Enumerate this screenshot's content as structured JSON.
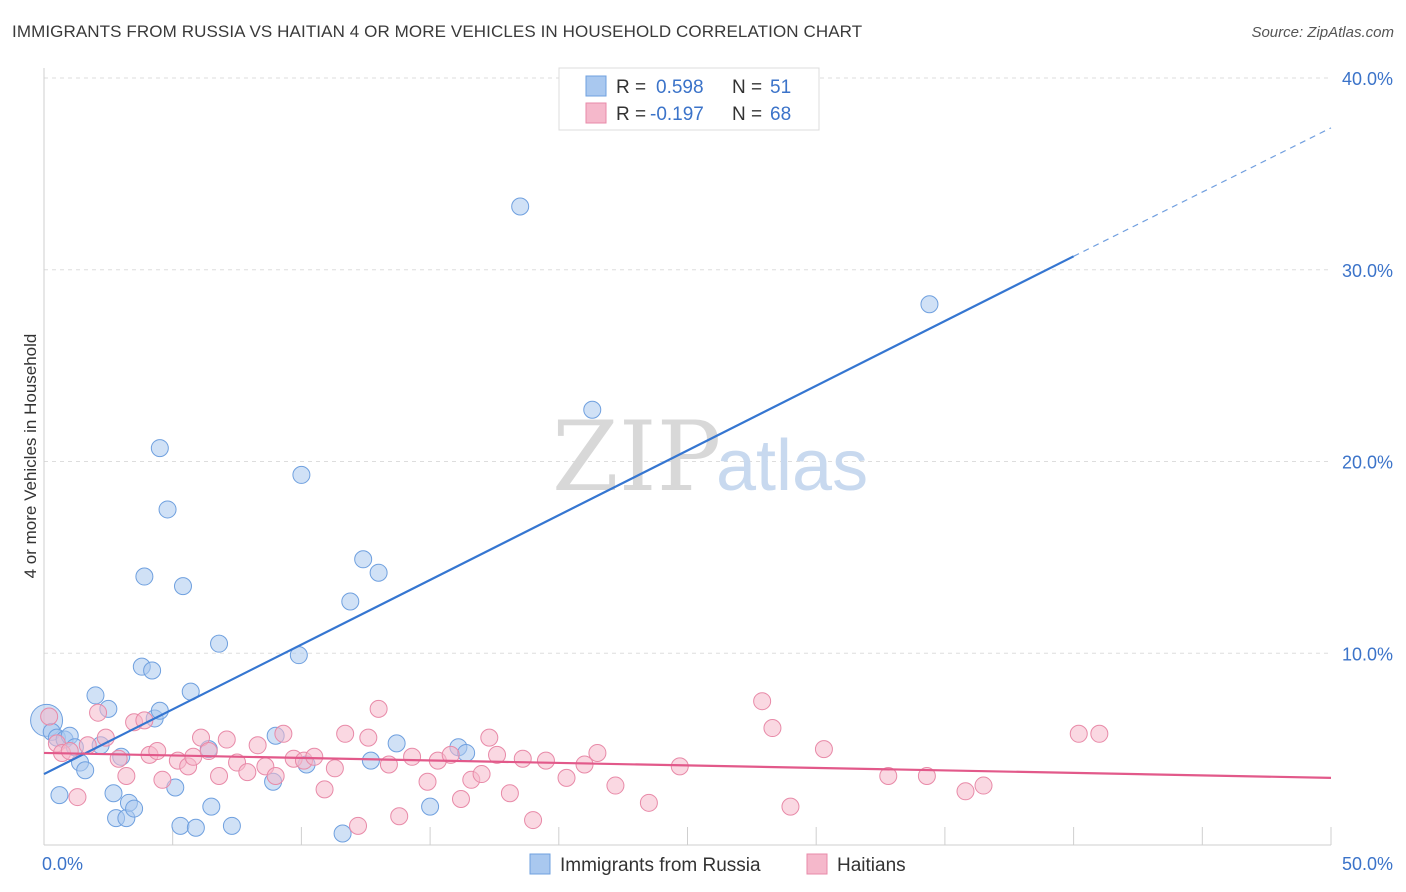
{
  "header": {
    "title": "IMMIGRANTS FROM RUSSIA VS HAITIAN 4 OR MORE VEHICLES IN HOUSEHOLD CORRELATION CHART",
    "source": "Source: ZipAtlas.com"
  },
  "watermark": {
    "zip": "ZIP",
    "atlas": "atlas"
  },
  "stats_legend": [
    {
      "r_label": "R =",
      "r_value": "0.598",
      "n_label": "N =",
      "n_value": "51",
      "color": "#a9c8ef"
    },
    {
      "r_label": "R =",
      "r_value": "-0.197",
      "n_label": "N =",
      "n_value": "68",
      "color": "#f5b8cb"
    }
  ],
  "chart_data": {
    "type": "scatter",
    "title": "IMMIGRANTS FROM RUSSIA VS HAITIAN 4 OR MORE VEHICLES IN HOUSEHOLD CORRELATION CHART",
    "xlabel": "",
    "ylabel": "4 or more Vehicles in Household",
    "xlim": [
      0,
      50
    ],
    "ylim": [
      0,
      40
    ],
    "x_tick_labels": [
      {
        "value": 0,
        "label": "0.0%"
      },
      {
        "value": 50,
        "label": "50.0%"
      }
    ],
    "y_tick_labels": [
      {
        "value": 10,
        "label": "10.0%"
      },
      {
        "value": 20,
        "label": "20.0%"
      },
      {
        "value": 30,
        "label": "30.0%"
      },
      {
        "value": 40,
        "label": "40.0%"
      }
    ],
    "x_gridlines": [
      5,
      10,
      15,
      20,
      25,
      30,
      35,
      40,
      45,
      50
    ],
    "y_gridlines": [
      10,
      20,
      30,
      40
    ],
    "legend": [
      "Immigrants from Russia",
      "Haitians"
    ],
    "series": [
      {
        "name": "Immigrants from Russia",
        "color": "#a9c8ef",
        "stroke": "#6fa0df",
        "line_color": "#3576d1",
        "r": 0.598,
        "n": 51,
        "trend": {
          "x0": 0,
          "y0": 3.7,
          "x1": 40,
          "y1": 30.7,
          "dashed_to_x": 50,
          "dashed_to_y": 37.4
        },
        "points": [
          [
            0.1,
            6.5
          ],
          [
            0.3,
            5.9
          ],
          [
            0.5,
            5.6
          ],
          [
            0.6,
            2.6
          ],
          [
            0.8,
            5.5
          ],
          [
            1.0,
            5.7
          ],
          [
            1.2,
            5.1
          ],
          [
            1.4,
            4.3
          ],
          [
            1.6,
            3.9
          ],
          [
            2.0,
            7.8
          ],
          [
            2.2,
            5.2
          ],
          [
            2.5,
            7.1
          ],
          [
            2.7,
            2.7
          ],
          [
            2.8,
            1.4
          ],
          [
            3.0,
            4.6
          ],
          [
            3.2,
            1.4
          ],
          [
            3.3,
            2.2
          ],
          [
            3.5,
            1.9
          ],
          [
            3.8,
            9.3
          ],
          [
            3.9,
            14.0
          ],
          [
            4.2,
            9.1
          ],
          [
            4.3,
            6.6
          ],
          [
            4.5,
            7.0
          ],
          [
            4.5,
            20.7
          ],
          [
            4.8,
            17.5
          ],
          [
            5.1,
            3.0
          ],
          [
            5.3,
            1.0
          ],
          [
            5.4,
            13.5
          ],
          [
            5.7,
            8.0
          ],
          [
            5.9,
            0.9
          ],
          [
            6.4,
            5.0
          ],
          [
            6.5,
            2.0
          ],
          [
            6.8,
            10.5
          ],
          [
            7.3,
            1.0
          ],
          [
            8.9,
            3.3
          ],
          [
            9.0,
            5.7
          ],
          [
            9.9,
            9.9
          ],
          [
            10.0,
            19.3
          ],
          [
            10.2,
            4.2
          ],
          [
            11.6,
            0.6
          ],
          [
            11.9,
            12.7
          ],
          [
            12.4,
            14.9
          ],
          [
            12.7,
            4.4
          ],
          [
            13.0,
            14.2
          ],
          [
            13.7,
            5.3
          ],
          [
            15.0,
            2.0
          ],
          [
            16.1,
            5.1
          ],
          [
            16.4,
            4.8
          ],
          [
            18.5,
            33.3
          ],
          [
            21.3,
            22.7
          ],
          [
            34.4,
            28.2
          ]
        ]
      },
      {
        "name": "Haitians",
        "color": "#f5b8cb",
        "stroke": "#e88aa8",
        "line_color": "#e2598a",
        "r": -0.197,
        "n": 68,
        "trend": {
          "x0": 0,
          "y0": 4.8,
          "x1": 50,
          "y1": 3.5
        },
        "points": [
          [
            0.2,
            6.7
          ],
          [
            0.5,
            5.3
          ],
          [
            0.7,
            4.8
          ],
          [
            1.0,
            4.9
          ],
          [
            1.3,
            2.5
          ],
          [
            1.7,
            5.2
          ],
          [
            2.1,
            6.9
          ],
          [
            2.4,
            5.6
          ],
          [
            2.9,
            4.5
          ],
          [
            3.2,
            3.6
          ],
          [
            3.5,
            6.4
          ],
          [
            3.9,
            6.5
          ],
          [
            4.1,
            4.7
          ],
          [
            4.4,
            4.9
          ],
          [
            4.6,
            3.4
          ],
          [
            5.2,
            4.4
          ],
          [
            5.6,
            4.1
          ],
          [
            5.8,
            4.6
          ],
          [
            6.1,
            5.6
          ],
          [
            6.4,
            4.9
          ],
          [
            6.8,
            3.6
          ],
          [
            7.1,
            5.5
          ],
          [
            7.5,
            4.3
          ],
          [
            7.9,
            3.8
          ],
          [
            8.3,
            5.2
          ],
          [
            8.6,
            4.1
          ],
          [
            9.0,
            3.6
          ],
          [
            9.3,
            5.8
          ],
          [
            9.7,
            4.5
          ],
          [
            10.1,
            4.4
          ],
          [
            10.5,
            4.6
          ],
          [
            10.9,
            2.9
          ],
          [
            11.3,
            4.0
          ],
          [
            11.7,
            5.8
          ],
          [
            12.2,
            1.0
          ],
          [
            12.6,
            5.6
          ],
          [
            13.0,
            7.1
          ],
          [
            13.4,
            4.2
          ],
          [
            13.8,
            1.5
          ],
          [
            14.3,
            4.6
          ],
          [
            14.9,
            3.3
          ],
          [
            15.3,
            4.4
          ],
          [
            15.8,
            4.7
          ],
          [
            16.2,
            2.4
          ],
          [
            16.6,
            3.4
          ],
          [
            17.0,
            3.7
          ],
          [
            17.3,
            5.6
          ],
          [
            17.6,
            4.7
          ],
          [
            18.1,
            2.7
          ],
          [
            18.6,
            4.5
          ],
          [
            19.0,
            1.3
          ],
          [
            19.5,
            4.4
          ],
          [
            20.3,
            3.5
          ],
          [
            21.0,
            4.2
          ],
          [
            21.5,
            4.8
          ],
          [
            22.2,
            3.1
          ],
          [
            23.5,
            2.2
          ],
          [
            24.7,
            4.1
          ],
          [
            27.9,
            7.5
          ],
          [
            28.3,
            6.1
          ],
          [
            29.0,
            2.0
          ],
          [
            30.3,
            5.0
          ],
          [
            32.8,
            3.6
          ],
          [
            34.3,
            3.6
          ],
          [
            35.8,
            2.8
          ],
          [
            36.5,
            3.1
          ],
          [
            40.2,
            5.8
          ],
          [
            41.0,
            5.8
          ]
        ]
      }
    ]
  }
}
